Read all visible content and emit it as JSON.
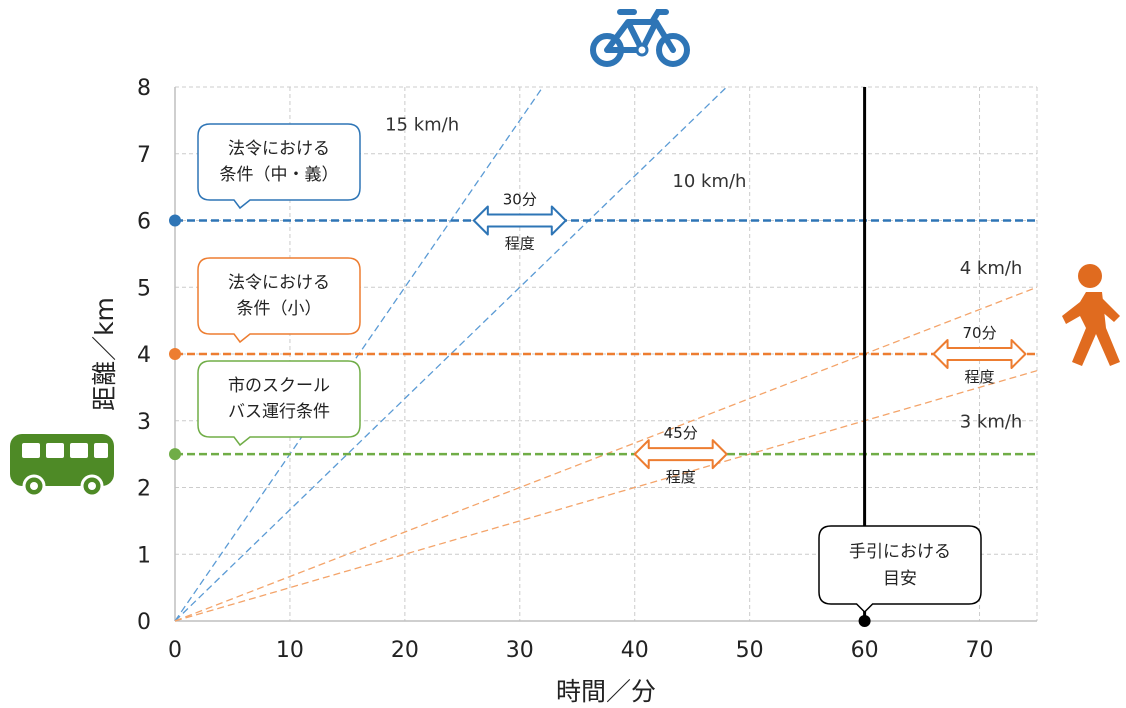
{
  "chart_data": {
    "type": "line",
    "xlabel": "時間／分",
    "ylabel": "距離／km",
    "xlim": [
      0,
      75
    ],
    "ylim": [
      0,
      8
    ],
    "xticks": [
      0,
      10,
      20,
      30,
      40,
      50,
      60,
      70
    ],
    "yticks": [
      0,
      1,
      2,
      3,
      4,
      5,
      6,
      7,
      8
    ],
    "xtick_labels": [
      "0",
      "10",
      "20",
      "30",
      "40",
      "50",
      "60",
      "70"
    ],
    "ytick_labels": [
      "0",
      "1",
      "2",
      "3",
      "4",
      "5",
      "6",
      "7",
      "8"
    ],
    "grid": true,
    "speed_lines": [
      {
        "name": "15 km/h",
        "speed_kmh": 15,
        "color": "#5b9bd5"
      },
      {
        "name": "10 km/h",
        "speed_kmh": 10,
        "color": "#5b9bd5"
      },
      {
        "name": "4 km/h",
        "speed_kmh": 4,
        "color": "#f4a46a"
      },
      {
        "name": "3 km/h",
        "speed_kmh": 3,
        "color": "#f4a46a"
      }
    ],
    "thresholds": [
      {
        "distance_km": 6,
        "color": "#2e75b6",
        "label": "法令における\n条件（中・義）"
      },
      {
        "distance_km": 4,
        "color": "#ed7d31",
        "label": "法令における\n条件（小）"
      },
      {
        "distance_km": 2.5,
        "color": "#70ad47",
        "label": "市のスクール\nバス運行条件"
      }
    ],
    "vertical_line": {
      "time_min": 60,
      "color": "#000000",
      "label": "手引における\n目安"
    },
    "range_arrows": [
      {
        "y_km": 6,
        "x_from": 26,
        "x_to": 34,
        "top_label": "30分",
        "bottom_label": "程度",
        "color": "#2e75b6"
      },
      {
        "y_km": 4,
        "x_from": 66,
        "x_to": 74,
        "top_label": "70分",
        "bottom_label": "程度",
        "color": "#ed7d31"
      },
      {
        "y_km": 2.5,
        "x_from": 40,
        "x_to": 48,
        "top_label": "45分",
        "bottom_label": "程度",
        "color": "#ed7d31"
      }
    ]
  },
  "icons": [
    {
      "name": "bicycle-icon",
      "color": "#2e75b6"
    },
    {
      "name": "walking-person-icon",
      "color": "#e06b1f"
    },
    {
      "name": "bus-icon",
      "color": "#4e8a26"
    }
  ]
}
